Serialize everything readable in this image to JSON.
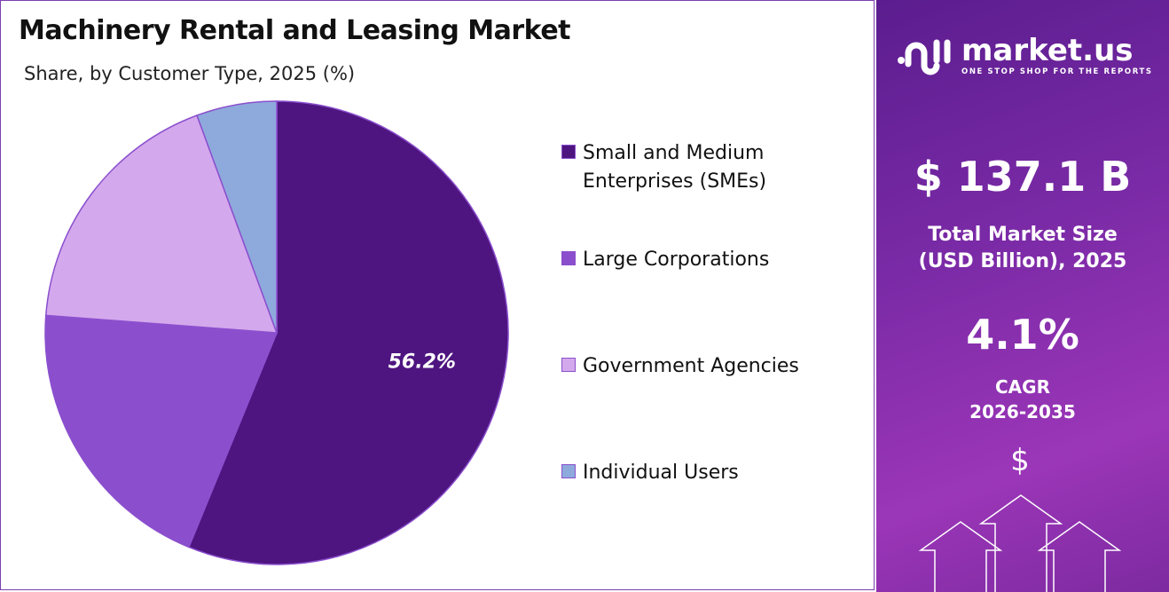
{
  "chart_data": {
    "type": "pie",
    "title": "Machinery Rental and Leasing Market",
    "subtitle": "Share, by Customer Type, 2025 (%)",
    "categories": [
      "Small and Medium Enterprises (SMEs)",
      "Large Corporations",
      "Government Agencies",
      "Individual Users"
    ],
    "values": [
      56.2,
      20.0,
      18.2,
      5.6
    ],
    "colors": [
      "#4e1580",
      "#8b4fce",
      "#d4a8ec",
      "#8eaadc"
    ],
    "data_labels": [
      "56.2%",
      "",
      "",
      ""
    ],
    "legend_placement": "right",
    "start_angle": "top, clockwise"
  },
  "legend": {
    "items": [
      {
        "label_line1": "Small and Medium",
        "label_line2": "Enterprises (SMEs)"
      },
      {
        "label_line1": "Large Corporations"
      },
      {
        "label_line1": "Government Agencies"
      },
      {
        "label_line1": "Individual Users"
      }
    ]
  },
  "sidebar": {
    "logo_name": "market.us",
    "logo_tagline": "ONE STOP SHOP FOR THE REPORTS",
    "market_size": "$ 137.1 B",
    "market_size_label_1": "Total Market Size",
    "market_size_label_2": "(USD Billion), 2025",
    "cagr": "4.1%",
    "cagr_label": "CAGR",
    "cagr_period": "2026-2035",
    "icon": "dollar-with-up-arrows"
  }
}
